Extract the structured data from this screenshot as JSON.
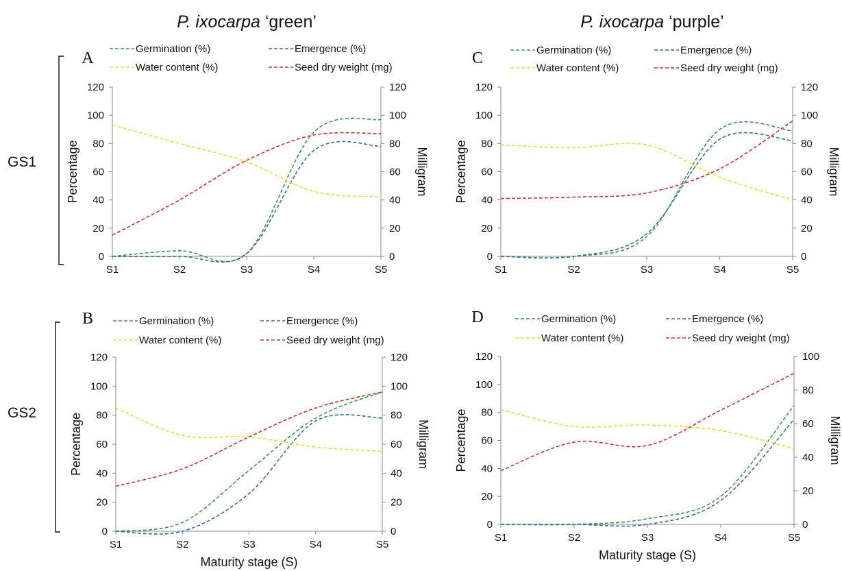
{
  "figure": {
    "column_titles": [
      {
        "species": "P. ixocarpa",
        "variety": " ‘green’"
      },
      {
        "species": "P. ixocarpa",
        "variety": " ‘purple’"
      }
    ],
    "row_labels": [
      "GS1",
      "GS2"
    ]
  },
  "colors": {
    "Germination (%)": "#2e9e3e",
    "Emergence (%)": "#2a6db3",
    "Water content (%)": "#f0e020",
    "Seed dry weight (mg)": "#e8281e"
  },
  "chart_data": [
    {
      "panel": "A",
      "type": "line",
      "categories": [
        "S1",
        "S2",
        "S3",
        "S4",
        "S5"
      ],
      "ylabel": "Percentage",
      "y2label": "Milligram",
      "xlabel": "",
      "ylim": [
        0,
        120
      ],
      "y2lim": [
        0,
        120
      ],
      "yticks": [
        0,
        20,
        40,
        60,
        80,
        100,
        120
      ],
      "y2ticks": [
        0,
        20,
        40,
        60,
        80,
        100,
        120
      ],
      "legend_position": "top",
      "series": [
        {
          "name": "Germination (%)",
          "axis": "left",
          "values": [
            0,
            4,
            2,
            88,
            97
          ]
        },
        {
          "name": "Emergence (%)",
          "axis": "left",
          "values": [
            0,
            0,
            2,
            75,
            78
          ]
        },
        {
          "name": "Water content (%)",
          "axis": "left",
          "values": [
            93,
            80,
            67,
            46,
            42
          ]
        },
        {
          "name": "Seed dry weight (mg)",
          "axis": "right",
          "values": [
            15,
            40,
            68,
            86,
            87
          ]
        }
      ]
    },
    {
      "panel": "C",
      "type": "line",
      "categories": [
        "S1",
        "S2",
        "S3",
        "S4",
        "S5"
      ],
      "ylabel": "Percentage",
      "y2label": "Milligram",
      "xlabel": "",
      "ylim": [
        0,
        120
      ],
      "y2lim": [
        0,
        120
      ],
      "yticks": [
        0,
        20,
        40,
        60,
        80,
        100,
        120
      ],
      "y2ticks": [
        0,
        20,
        40,
        60,
        80,
        100,
        120
      ],
      "legend_position": "top",
      "series": [
        {
          "name": "Germination (%)",
          "axis": "left",
          "values": [
            0,
            0,
            14,
            90,
            89
          ]
        },
        {
          "name": "Emergence (%)",
          "axis": "left",
          "values": [
            0,
            0,
            16,
            83,
            82
          ]
        },
        {
          "name": "Water content (%)",
          "axis": "left",
          "values": [
            79,
            77,
            79,
            56,
            40
          ]
        },
        {
          "name": "Seed dry weight (mg)",
          "axis": "right",
          "values": [
            41,
            42,
            45,
            62,
            96
          ]
        }
      ]
    },
    {
      "panel": "B",
      "type": "line",
      "categories": [
        "S1",
        "S2",
        "S3",
        "S4",
        "S5"
      ],
      "ylabel": "Percentage",
      "y2label": "Milligram",
      "xlabel": "Maturity stage (S)",
      "ylim": [
        0,
        120
      ],
      "y2lim": [
        0,
        120
      ],
      "yticks": [
        0,
        20,
        40,
        60,
        80,
        100,
        120
      ],
      "y2ticks": [
        0,
        20,
        40,
        60,
        80,
        100,
        120
      ],
      "legend_position": "top",
      "series": [
        {
          "name": "Germination (%)",
          "axis": "left",
          "values": [
            0,
            6,
            42,
            78,
            96
          ]
        },
        {
          "name": "Emergence (%)",
          "axis": "left",
          "values": [
            0,
            0,
            26,
            76,
            78
          ]
        },
        {
          "name": "Water content (%)",
          "axis": "left",
          "values": [
            85,
            66,
            65,
            58,
            55
          ]
        },
        {
          "name": "Seed dry weight (mg)",
          "axis": "right",
          "values": [
            31,
            43,
            65,
            85,
            96
          ]
        }
      ]
    },
    {
      "panel": "D",
      "type": "line",
      "categories": [
        "S1",
        "S2",
        "S3",
        "S4",
        "S5"
      ],
      "ylabel": "Percentage",
      "y2label": "Milligram",
      "xlabel": "Maturity stage (S)",
      "ylim": [
        0,
        120
      ],
      "y2lim": [
        0,
        100
      ],
      "yticks": [
        0,
        20,
        40,
        60,
        80,
        100,
        120
      ],
      "y2ticks": [
        0,
        20,
        40,
        60,
        80,
        100
      ],
      "legend_position": "top",
      "series": [
        {
          "name": "Germination (%)",
          "axis": "left",
          "values": [
            0,
            0,
            4,
            20,
            85
          ]
        },
        {
          "name": "Emergence (%)",
          "axis": "left",
          "values": [
            0,
            0,
            0,
            17,
            75
          ]
        },
        {
          "name": "Water content (%)",
          "axis": "left",
          "values": [
            82,
            70,
            71,
            67,
            54
          ]
        },
        {
          "name": "Seed dry weight (mg)",
          "axis": "right",
          "values": [
            32,
            49,
            47,
            68,
            90
          ]
        }
      ]
    }
  ]
}
